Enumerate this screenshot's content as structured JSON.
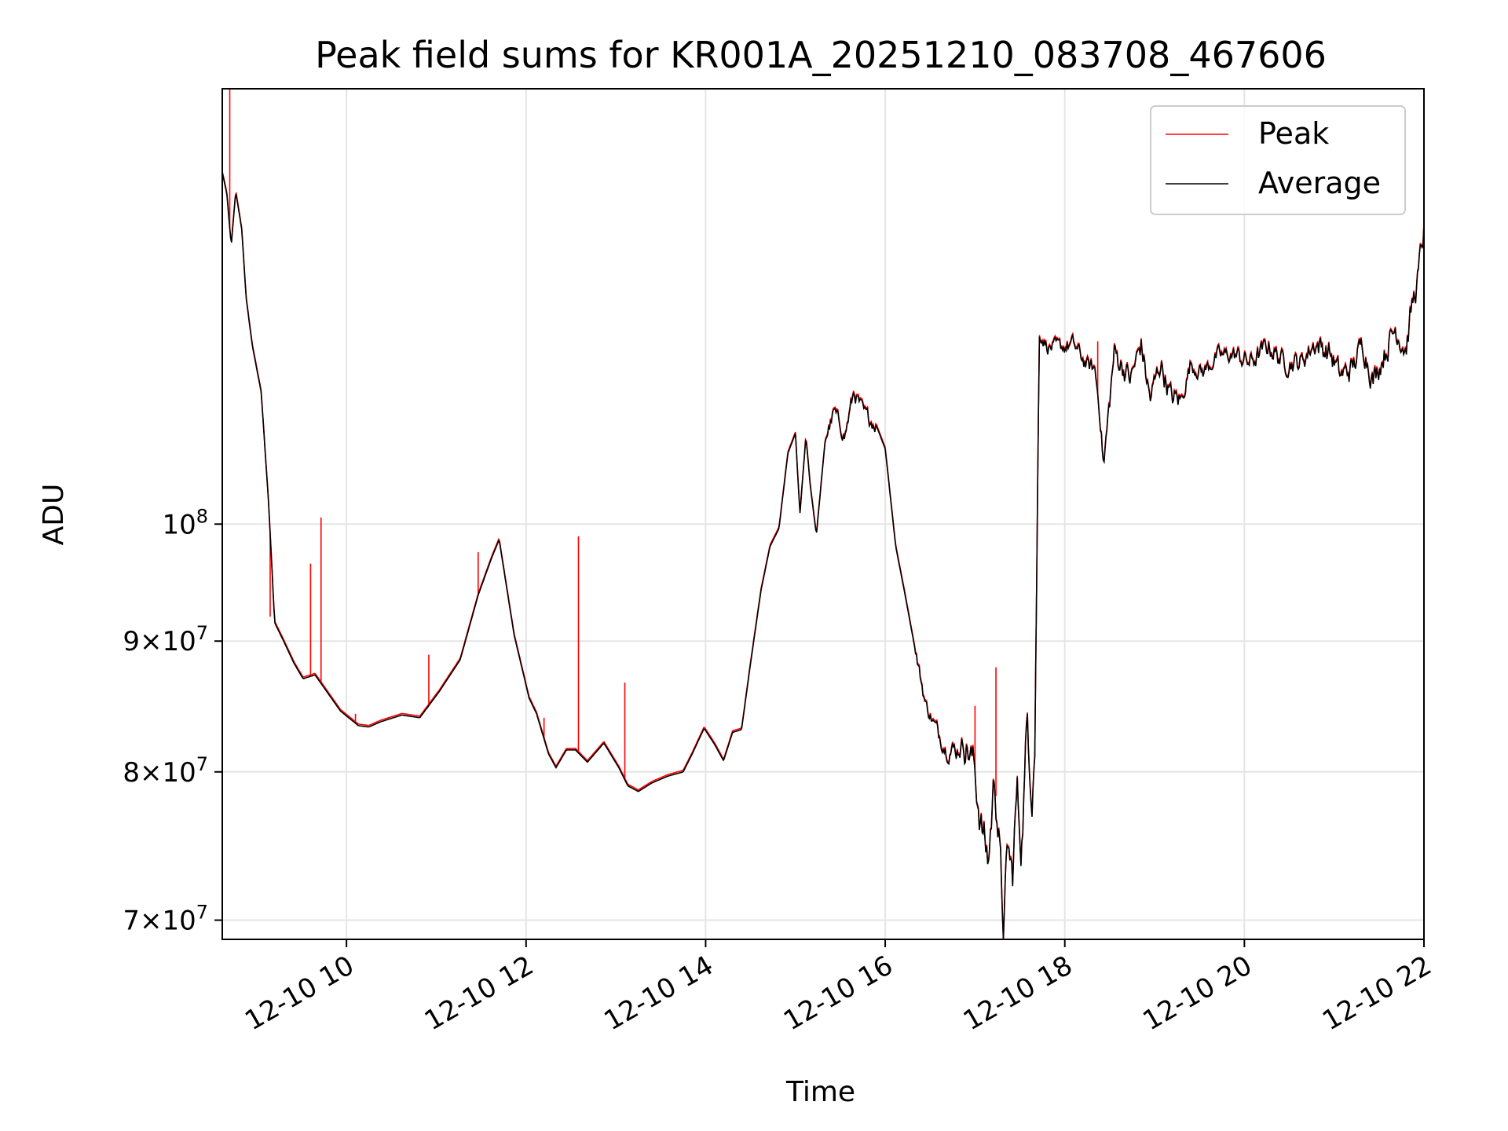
{
  "chart_data": {
    "type": "line",
    "title": "Peak field sums for KR001A_20251210_083708_467606",
    "xlabel": "Time",
    "ylabel": "ADU",
    "x_range": [
      "2025-12-10 08:37",
      "2025-12-10 22:00"
    ],
    "xticks": [
      {
        "value": "2025-12-10 10:00",
        "label": "12-10 10"
      },
      {
        "value": "2025-12-10 12:00",
        "label": "12-10 12"
      },
      {
        "value": "2025-12-10 14:00",
        "label": "12-10 14"
      },
      {
        "value": "2025-12-10 16:00",
        "label": "12-10 16"
      },
      {
        "value": "2025-12-10 18:00",
        "label": "12-10 18"
      },
      {
        "value": "2025-12-10 20:00",
        "label": "12-10 20"
      },
      {
        "value": "2025-12-10 22:00",
        "label": "12-10 22"
      }
    ],
    "y_scale": "log",
    "ylim": [
      68800000,
      148000000
    ],
    "yticks": [
      {
        "value": 70000000,
        "mantissa": "7",
        "exponent": "7"
      },
      {
        "value": 80000000,
        "mantissa": "8",
        "exponent": "7"
      },
      {
        "value": 90000000,
        "mantissa": "9",
        "exponent": "7"
      },
      {
        "value": 100000000,
        "mantissa": "",
        "exponent": "8"
      }
    ],
    "grid": true,
    "legend": "top-right",
    "series": [
      {
        "name": "Peak",
        "color": "#ff0000",
        "spikes": [
          {
            "x": "2025-12-10 08:42",
            "y": 148000000
          },
          {
            "x": "2025-12-10 09:09",
            "y": 92000000
          },
          {
            "x": "2025-12-10 09:36",
            "y": 96500000
          },
          {
            "x": "2025-12-10 09:43",
            "y": 100600000
          },
          {
            "x": "2025-12-10 10:06",
            "y": 84300000
          },
          {
            "x": "2025-12-10 10:55",
            "y": 88900000
          },
          {
            "x": "2025-12-10 11:28",
            "y": 97500000
          },
          {
            "x": "2025-12-10 12:12",
            "y": 84000000
          },
          {
            "x": "2025-12-10 12:35",
            "y": 98900000
          },
          {
            "x": "2025-12-10 13:06",
            "y": 86700000
          },
          {
            "x": "2025-12-10 17:00",
            "y": 84900000
          },
          {
            "x": "2025-12-10 17:14",
            "y": 87900000
          },
          {
            "x": "2025-12-10 18:22",
            "y": 117900000
          }
        ]
      },
      {
        "name": "Average",
        "color": "#000000",
        "x": [
          "2025-12-10 08:37",
          "2025-12-10 08:40",
          "2025-12-10 08:43",
          "2025-12-10 08:46",
          "2025-12-10 08:50",
          "2025-12-10 08:53",
          "2025-12-10 08:57",
          "2025-12-10 09:03",
          "2025-12-10 09:08",
          "2025-12-10 09:12",
          "2025-12-10 09:18",
          "2025-12-10 09:25",
          "2025-12-10 09:31",
          "2025-12-10 09:39",
          "2025-12-10 09:45",
          "2025-12-10 09:56",
          "2025-12-10 10:08",
          "2025-12-10 10:15",
          "2025-12-10 10:23",
          "2025-12-10 10:37",
          "2025-12-10 10:49",
          "2025-12-10 11:02",
          "2025-12-10 11:16",
          "2025-12-10 11:28",
          "2025-12-10 11:37",
          "2025-12-10 11:42",
          "2025-12-10 11:52",
          "2025-12-10 12:02",
          "2025-12-10 12:07",
          "2025-12-10 12:15",
          "2025-12-10 12:20",
          "2025-12-10 12:27",
          "2025-12-10 12:33",
          "2025-12-10 12:41",
          "2025-12-10 12:52",
          "2025-12-10 13:02",
          "2025-12-10 13:08",
          "2025-12-10 13:15",
          "2025-12-10 13:24",
          "2025-12-10 13:35",
          "2025-12-10 13:45",
          "2025-12-10 13:51",
          "2025-12-10 13:59",
          "2025-12-10 14:06",
          "2025-12-10 14:12",
          "2025-12-10 14:18",
          "2025-12-10 14:24",
          "2025-12-10 14:30",
          "2025-12-10 14:37",
          "2025-12-10 14:43",
          "2025-12-10 14:49",
          "2025-12-10 14:55",
          "2025-12-10 15:00",
          "2025-12-10 15:03",
          "2025-12-10 15:07",
          "2025-12-10 15:10",
          "2025-12-10 15:14",
          "2025-12-10 15:20",
          "2025-12-10 15:26",
          "2025-12-10 15:33",
          "2025-12-10 15:39",
          "2025-12-10 15:46",
          "2025-12-10 15:54",
          "2025-12-10 16:00",
          "2025-12-10 16:07",
          "2025-12-10 16:13",
          "2025-12-10 16:20",
          "2025-12-10 16:27",
          "2025-12-10 16:33",
          "2025-12-10 16:40",
          "2025-12-10 16:47",
          "2025-12-10 16:53",
          "2025-12-10 16:59",
          "2025-12-10 17:04",
          "2025-12-10 17:09",
          "2025-12-10 17:13",
          "2025-12-10 17:16",
          "2025-12-10 17:19",
          "2025-12-10 17:22",
          "2025-12-10 17:25",
          "2025-12-10 17:28",
          "2025-12-10 17:31",
          "2025-12-10 17:33",
          "2025-12-10 17:35",
          "2025-12-10 17:38",
          "2025-12-10 17:40",
          "2025-12-10 17:43",
          "2025-12-10 17:49",
          "2025-12-10 17:58",
          "2025-12-10 18:06",
          "2025-12-10 18:15",
          "2025-12-10 18:20",
          "2025-12-10 18:23",
          "2025-12-10 18:26",
          "2025-12-10 18:33",
          "2025-12-10 18:44",
          "2025-12-10 18:51",
          "2025-12-10 18:57",
          "2025-12-10 19:04",
          "2025-12-10 19:11",
          "2025-12-10 19:18",
          "2025-12-10 19:24",
          "2025-12-10 19:32",
          "2025-12-10 19:42",
          "2025-12-10 19:53",
          "2025-12-10 20:04",
          "2025-12-10 20:16",
          "2025-12-10 20:27",
          "2025-12-10 20:38",
          "2025-12-10 20:47",
          "2025-12-10 20:57",
          "2025-12-10 21:04",
          "2025-12-10 21:12",
          "2025-12-10 21:19",
          "2025-12-10 21:26",
          "2025-12-10 21:34",
          "2025-12-10 21:41",
          "2025-12-10 21:48",
          "2025-12-10 21:52",
          "2025-12-10 21:56",
          "2025-12-10 22:00"
        ],
        "values": [
          137200000,
          134700000,
          128500000,
          134900000,
          130400000,
          122500000,
          117500000,
          112600000,
          101800000,
          91500000,
          90000000,
          88200000,
          87000000,
          87300000,
          86300000,
          84500000,
          83400000,
          83300000,
          83700000,
          84200000,
          84000000,
          86000000,
          88500000,
          93800000,
          97000000,
          98600000,
          90500000,
          85500000,
          84300000,
          81300000,
          80300000,
          81600000,
          81600000,
          80700000,
          82100000,
          80300000,
          79000000,
          78600000,
          79200000,
          79700000,
          80000000,
          81300000,
          83200000,
          82000000,
          80800000,
          82900000,
          83100000,
          88200000,
          94200000,
          98000000,
          99600000,
          106600000,
          108500000,
          100900000,
          108200000,
          103400000,
          99000000,
          108000000,
          110600000,
          108200000,
          112600000,
          110400000,
          109300000,
          107000000,
          98000000,
          94000000,
          89300000,
          85000000,
          83400000,
          81800000,
          81500000,
          82100000,
          80700000,
          76300000,
          73800000,
          79800000,
          75300000,
          69500000,
          74800000,
          72600000,
          78800000,
          74700000,
          79000000,
          84000000,
          78500000,
          82000000,
          118700000,
          117200000,
          117300000,
          117500000,
          115300000,
          115000000,
          111300000,
          105300000,
          116700000,
          113900000,
          117600000,
          111800000,
          115700000,
          112000000,
          111800000,
          115500000,
          114600000,
          116300000,
          116500000,
          115600000,
          117400000,
          115600000,
          115700000,
          117700000,
          116700000,
          114300000,
          115000000,
          117700000,
          113800000,
          116800000,
          119300000,
          117100000,
          121600000,
          124700000,
          130500000
        ],
        "noise": [
          0,
          0,
          0,
          0,
          0,
          0,
          0,
          0,
          0,
          0,
          0,
          0,
          0,
          0,
          0,
          0,
          0,
          0,
          0,
          0,
          0,
          0,
          0,
          0,
          0,
          0,
          0,
          0,
          0,
          0,
          0,
          0,
          0,
          0,
          0,
          0,
          0,
          0,
          0,
          0,
          0,
          0,
          0,
          0,
          0,
          0,
          0,
          0,
          0,
          0,
          0,
          0,
          0,
          0,
          0,
          0,
          0,
          0,
          0.011,
          0.011,
          0.011,
          0.011,
          0.011,
          0,
          0,
          0,
          0,
          0.01,
          0.01,
          0.012,
          0.015,
          0.015,
          0.025,
          0.03,
          0.03,
          0.03,
          0.03,
          0.03,
          0.03,
          0.03,
          0.03,
          0.03,
          0.03,
          0.03,
          0.03,
          0.03,
          0.01,
          0.01,
          0.01,
          0.012,
          0.012,
          0.012,
          0.012,
          0.012,
          0.018,
          0.018,
          0.018,
          0.018,
          0.018,
          0.018,
          0.018,
          0.012,
          0.012,
          0.012,
          0.012,
          0.015,
          0.015,
          0.015,
          0.015,
          0.015,
          0.018,
          0.018,
          0.018,
          0.018,
          0.018,
          0.018,
          0.02,
          0.02,
          0.02,
          0.02,
          0.02
        ]
      }
    ]
  }
}
